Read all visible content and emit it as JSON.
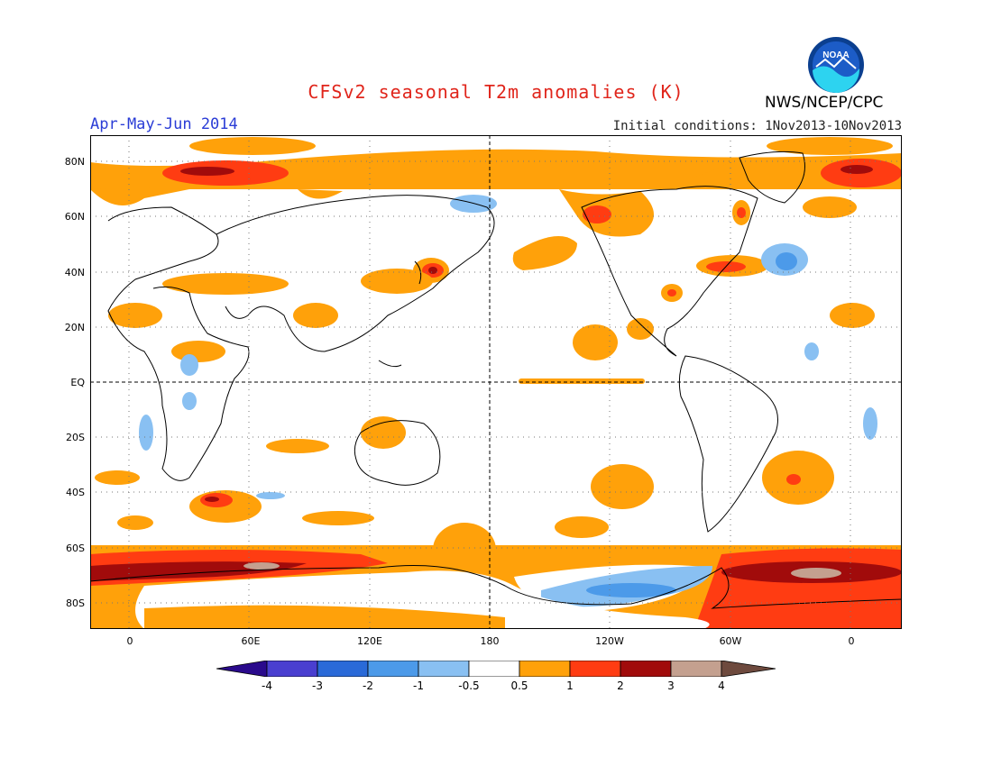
{
  "title": "CFSv2 seasonal T2m anomalies (K)",
  "period": "Apr-May-Jun 2014",
  "initial_conditions": "Initial conditions: 1Nov2013-10Nov2013",
  "organization": "NWS/NCEP/CPC",
  "logo_text": "NOAA",
  "colors": {
    "title": "#e0251b",
    "period": "#2a3cd6",
    "neg4": "#2a0a8c",
    "neg3": "#4a3fd0",
    "neg2": "#2a6ad8",
    "neg1": "#4c9ae9",
    "neg05": "#89c0f2",
    "neutral": "#ffffff",
    "pos05": "#ffa10a",
    "pos1": "#ff3c12",
    "pos2": "#a10b0b",
    "pos3": "#c4a08f",
    "pos4": "#6e4a3e"
  },
  "lat_labels": [
    "80N",
    "60N",
    "40N",
    "20N",
    "EQ",
    "20S",
    "40S",
    "60S",
    "80S"
  ],
  "lon_labels": [
    "0",
    "60E",
    "120E",
    "180",
    "120W",
    "60W",
    "0"
  ],
  "colorbar_labels": [
    "-4",
    "-3",
    "-2",
    "-1",
    "-0.5",
    "0.5",
    "1",
    "2",
    "3",
    "4"
  ],
  "chart_data": {
    "type": "heatmap",
    "variable": "T2m anomaly",
    "units": "K",
    "contour_levels": [
      -4,
      -3,
      -2,
      -1,
      -0.5,
      0.5,
      1,
      2,
      3,
      4
    ],
    "anomaly_regions": [
      {
        "lon": [
          -20,
          340
        ],
        "lat": [
          -62,
          -70
        ],
        "level": 1
      },
      {
        "lon": [
          -20,
          120
        ],
        "lat": [
          -68,
          -72
        ],
        "level": 3
      },
      {
        "lon": [
          270,
          340
        ],
        "lat": [
          -63,
          -80
        ],
        "level": 1
      },
      {
        "lon": [
          310,
          330
        ],
        "lat": [
          -70,
          -72
        ],
        "level": 3
      },
      {
        "lon": [
          150,
          250
        ],
        "lat": [
          -68,
          -75
        ],
        "level": -0.5
      },
      {
        "lon": [
          135,
          155
        ],
        "lat": [
          40,
          40
        ],
        "level": 2
      },
      {
        "lon": [
          285,
          300
        ],
        "lat": [
          38,
          40
        ],
        "level": 1
      },
      {
        "lon": [
          320,
          330
        ],
        "lat": [
          42,
          38
        ],
        "level": -1
      },
      {
        "lon": [
          0,
          60
        ],
        "lat": [
          78,
          72
        ],
        "level": 2
      },
      {
        "lon": [
          195,
          240
        ],
        "lat": [
          0,
          0
        ],
        "level": 0.5
      }
    ]
  }
}
